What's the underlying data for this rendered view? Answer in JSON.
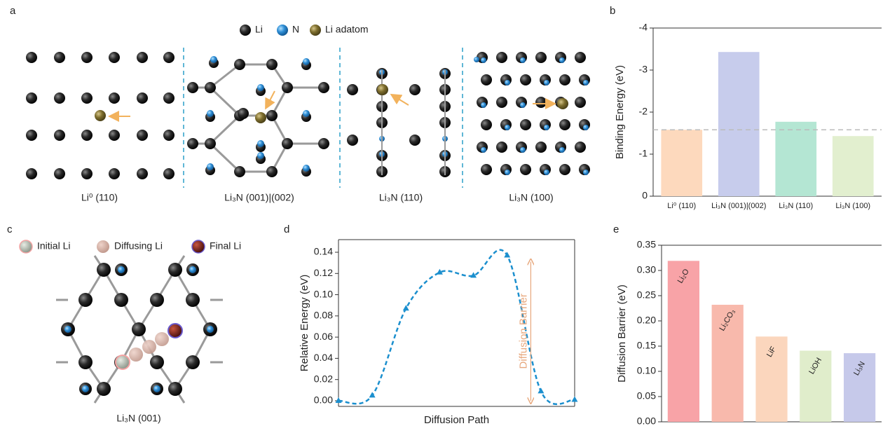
{
  "figure": {
    "panel_a": {
      "label": "a",
      "legend": [
        "Li",
        "N",
        "Li adatom"
      ],
      "captions": [
        "Li⁰ (110)",
        "Li₃N (001)|(002)",
        "Li₃N (110)",
        "Li₃N (100)"
      ]
    },
    "panel_c": {
      "label": "c",
      "legend": [
        "Initial Li",
        "Diffusing Li",
        "Final Li"
      ],
      "caption": "Li₃N (001)"
    }
  },
  "chart_data": [
    {
      "type": "bar",
      "label": "b",
      "y_label": "Binding Energy (eV)",
      "categories": [
        "Li⁰ (110)",
        "Li₃N (001)|(002)",
        "Li₃N (110)",
        "Li₃N (100)"
      ],
      "values": [
        -1.58,
        -3.43,
        -1.77,
        -1.43
      ],
      "colors": [
        "#fdd9bd",
        "#c7ccec",
        "#b4e6d3",
        "#e2efcf"
      ],
      "reference_line": -1.58,
      "ylim": [
        0,
        -4
      ],
      "yticks": [
        0,
        -1,
        -2,
        -3,
        -4
      ]
    },
    {
      "type": "line",
      "label": "d",
      "x_label": "Diffusion Path",
      "y_label": "Relative Energy (eV)",
      "categories": [
        null,
        null,
        null,
        null,
        null,
        null,
        null,
        null
      ],
      "values": [
        0.0,
        0.005,
        0.087,
        0.121,
        0.118,
        0.137,
        0.009,
        0.001
      ],
      "color": "#1b8fce",
      "annotation": {
        "text": "Diffusion Barrier",
        "value": 0.131
      },
      "ylim": [
        -0.0053,
        0.1519
      ],
      "yticks": [
        {
          "value": 0,
          "label": "0.00"
        },
        {
          "value": 0.02,
          "label": "0.02"
        },
        {
          "value": 0.04,
          "label": "0.04"
        },
        {
          "value": 0.06,
          "label": "0.06"
        },
        {
          "value": 0.08,
          "label": "0.08"
        },
        {
          "value": 0.1,
          "label": "0.10"
        },
        {
          "value": 0.12,
          "label": "0.12"
        },
        {
          "value": 0.14,
          "label": "0.14"
        }
      ]
    },
    {
      "type": "bar",
      "label": "e",
      "y_label": "Diffusion Barrier (eV)",
      "categories": [
        "Li₂O",
        "Li₂CO₃",
        "LiF",
        "LiOH",
        "Li₃N"
      ],
      "values": [
        0.319,
        0.232,
        0.169,
        0.141,
        0.136
      ],
      "colors": [
        "#f8a3a7",
        "#f8b9ac",
        "#fbd6bd",
        "#e0edcb",
        "#c6c9ea"
      ],
      "ylim": [
        0,
        0.35
      ],
      "yticks": [
        {
          "value": 0,
          "label": "0.00"
        },
        {
          "value": 0.05,
          "label": "0.05"
        },
        {
          "value": 0.1,
          "label": "0.10"
        },
        {
          "value": 0.15,
          "label": "0.15"
        },
        {
          "value": 0.2,
          "label": "0.20"
        },
        {
          "value": 0.25,
          "label": "0.25"
        },
        {
          "value": 0.3,
          "label": "0.30"
        },
        {
          "value": 0.35,
          "label": "0.35"
        }
      ]
    }
  ]
}
